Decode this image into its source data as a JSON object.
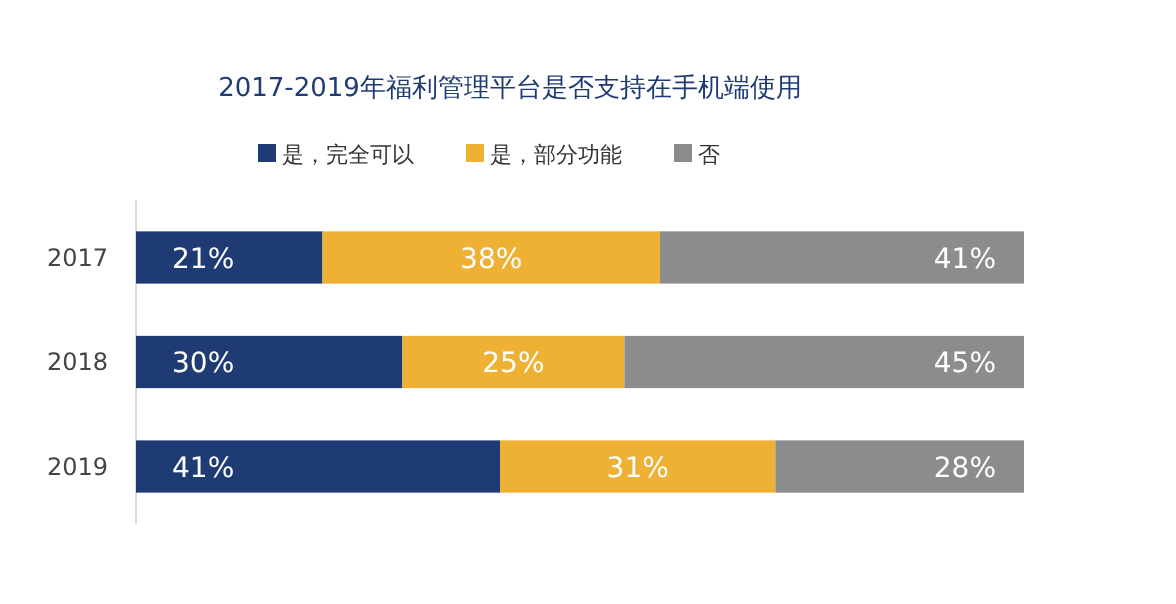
{
  "chart_data": {
    "type": "bar",
    "orientation": "horizontal",
    "stacked": true,
    "title": "2017-2019年福利管理平台是否支持在手机端使用",
    "categories": [
      "2017",
      "2018",
      "2019"
    ],
    "xlim": [
      0,
      100
    ],
    "tick_labels": "y",
    "legend": "top",
    "series": [
      {
        "name": "是，完全可以",
        "color": "#1f3b73",
        "values": [
          21,
          30,
          41
        ],
        "value_labels": [
          "21%",
          "30%",
          "41%"
        ]
      },
      {
        "name": "是，部分功能",
        "color": "#eeb134",
        "values": [
          38,
          25,
          31
        ],
        "value_labels": [
          "38%",
          "25%",
          "31%"
        ]
      },
      {
        "name": "否",
        "color": "#8c8c8c",
        "values": [
          41,
          45,
          28
        ],
        "value_labels": [
          "41%",
          "45%",
          "28%"
        ]
      }
    ]
  }
}
